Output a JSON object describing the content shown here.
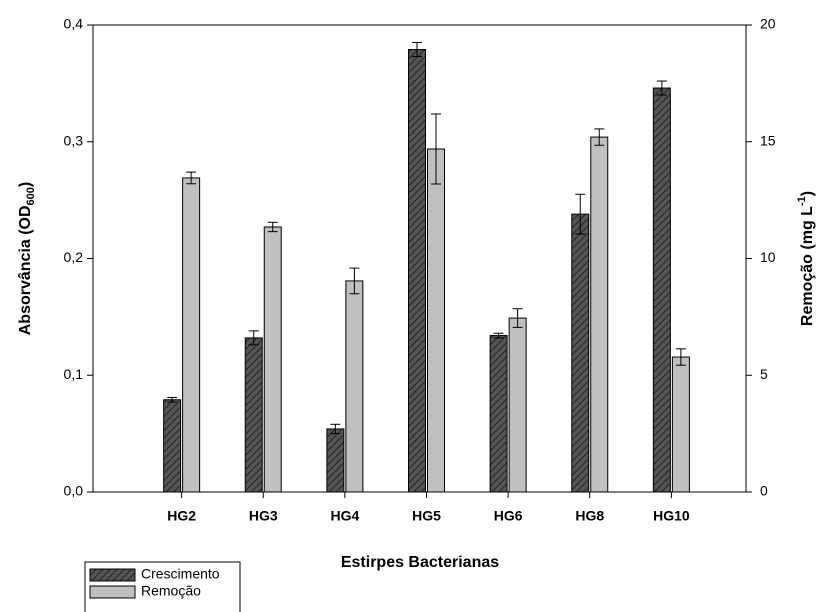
{
  "chart_data": {
    "type": "bar",
    "xlabel": "Estirpes Bacterianas",
    "ylabel": [
      "Absorvância (OD",
      "600",
      ")"
    ],
    "y2label": [
      "Remoção (mg L",
      "-1",
      ")"
    ],
    "categories": [
      "HG2",
      "HG3",
      "HG4",
      "HG5",
      "HG6",
      "HG8",
      "HG10"
    ],
    "series": [
      {
        "name": "Crescimento",
        "color": "#555555",
        "hatch": true,
        "values": [
          0.079,
          0.132,
          0.054,
          0.379,
          0.134,
          0.238,
          0.346
        ],
        "errors": [
          0.002,
          0.006,
          0.004,
          0.006,
          0.002,
          0.017,
          0.006
        ]
      },
      {
        "name": "Remoção",
        "color": "#c0c0c0",
        "axis": "y2",
        "values": [
          13.45,
          11.35,
          9.04,
          14.69,
          7.45,
          15.2,
          5.78
        ],
        "errors": [
          0.25,
          0.2,
          0.55,
          1.5,
          0.4,
          0.35,
          0.35
        ]
      }
    ],
    "ylim": [
      0,
      0.4
    ],
    "yticks": [
      {
        "value": 0,
        "label": "0,0"
      },
      {
        "value": 0.1,
        "label": "0,1"
      },
      {
        "value": 0.2,
        "label": "0,2"
      },
      {
        "value": 0.3,
        "label": "0,3"
      },
      {
        "value": 0.4,
        "label": "0,4"
      }
    ],
    "y2lim": [
      0,
      20
    ],
    "y2ticks": [
      0,
      5,
      10,
      15,
      20
    ],
    "legend": "bottom-left"
  }
}
